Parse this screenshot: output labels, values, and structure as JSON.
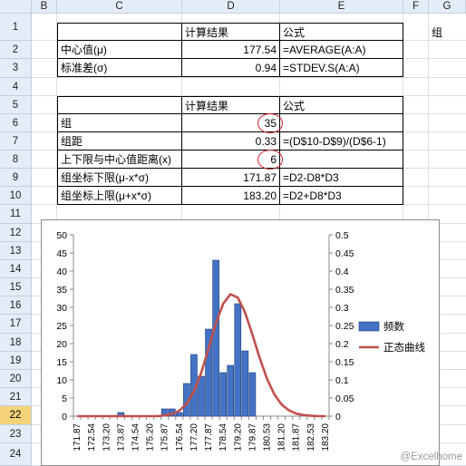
{
  "columns": [
    "B",
    "C",
    "D",
    "E",
    "F"
  ],
  "rows": [
    "1",
    "2",
    "3",
    "4",
    "5",
    "6",
    "7",
    "8",
    "9",
    "10",
    "11",
    "12",
    "13",
    "14",
    "15",
    "16",
    "17",
    "18",
    "19",
    "20",
    "21",
    "22",
    "23",
    "24"
  ],
  "selected_row": "22",
  "edge_column": {
    "header": "G",
    "cell": "组"
  },
  "table1": {
    "head": {
      "result": "计算结果",
      "formula": "公式"
    },
    "rows": [
      {
        "label": "中心值(μ)",
        "value": "177.54",
        "formula": "=AVERAGE(A:A)"
      },
      {
        "label": "标准差(σ)",
        "value": "0.94",
        "formula": "=STDEV.S(A:A)"
      }
    ]
  },
  "table2": {
    "head": {
      "result": "计算结果",
      "formula": "公式"
    },
    "rows": [
      {
        "label": "组",
        "value": "35",
        "formula": ""
      },
      {
        "label": "组距",
        "value": "0.33",
        "formula": "=(D$10-D$9)/(D$6-1)"
      },
      {
        "label": "上下限与中心值距离(x)",
        "value": "6",
        "formula": ""
      },
      {
        "label": "组坐标下限(μ-x*σ)",
        "value": "171.87",
        "formula": "=D2-D8*D3"
      },
      {
        "label": "组坐标上限(μ+x*σ)",
        "value": "183.20",
        "formula": "=D2+D8*D3"
      }
    ]
  },
  "watermark": "@Excelhome",
  "colors": {
    "bar": "#4472c4",
    "curve": "#c0504d",
    "circle": "#d21f26",
    "header": "#e4ecf7",
    "selected_header": "#f6d37a"
  },
  "chart_data": {
    "type": "bar",
    "categories": [
      "171.87",
      "172.20",
      "172.54",
      "172.87",
      "173.20",
      "173.54",
      "173.87",
      "174.20",
      "174.54",
      "174.87",
      "175.20",
      "175.54",
      "175.87",
      "176.20",
      "176.54",
      "176.87",
      "177.20",
      "177.54",
      "177.87",
      "178.20",
      "178.54",
      "178.87",
      "179.20",
      "179.54",
      "179.87",
      "180.20",
      "180.53",
      "180.87",
      "181.20",
      "181.53",
      "181.87",
      "182.20",
      "182.53",
      "182.87",
      "183.20"
    ],
    "tick_labels": [
      "171.87",
      "172.54",
      "173.20",
      "173.87",
      "174.54",
      "175.20",
      "175.87",
      "176.54",
      "177.20",
      "177.87",
      "178.54",
      "179.20",
      "179.87",
      "180.53",
      "181.20",
      "181.87",
      "182.53",
      "183.20"
    ],
    "series": [
      {
        "name": "频数",
        "type": "bar",
        "axis": "left",
        "values": [
          0,
          0,
          0,
          0,
          0,
          0,
          1,
          0,
          0,
          0,
          0,
          0,
          2,
          2,
          1,
          9,
          17,
          11,
          24,
          43,
          12,
          14,
          31,
          18,
          12,
          0,
          0,
          0,
          0,
          0,
          0,
          0,
          0,
          0,
          0
        ]
      },
      {
        "name": "正态曲线",
        "type": "line",
        "axis": "right",
        "values": [
          0,
          0,
          0,
          0,
          0,
          0,
          0,
          0,
          0,
          0,
          0,
          0,
          0.002,
          0.006,
          0.015,
          0.034,
          0.068,
          0.12,
          0.187,
          0.256,
          0.31,
          0.336,
          0.327,
          0.286,
          0.225,
          0.16,
          0.103,
          0.06,
          0.032,
          0.016,
          0.007,
          0.003,
          0.001,
          0,
          0
        ]
      }
    ],
    "left_axis": {
      "ticks": [
        "0",
        "5",
        "10",
        "15",
        "20",
        "25",
        "30",
        "35",
        "40",
        "45",
        "50"
      ],
      "ylim": [
        0,
        50
      ]
    },
    "right_axis": {
      "ticks": [
        "0",
        "0.05",
        "0.1",
        "0.15",
        "0.2",
        "0.25",
        "0.3",
        "0.35",
        "0.4",
        "0.45",
        "0.5"
      ],
      "ylim": [
        0,
        0.5
      ]
    },
    "legend_position": "right",
    "grid": false
  }
}
